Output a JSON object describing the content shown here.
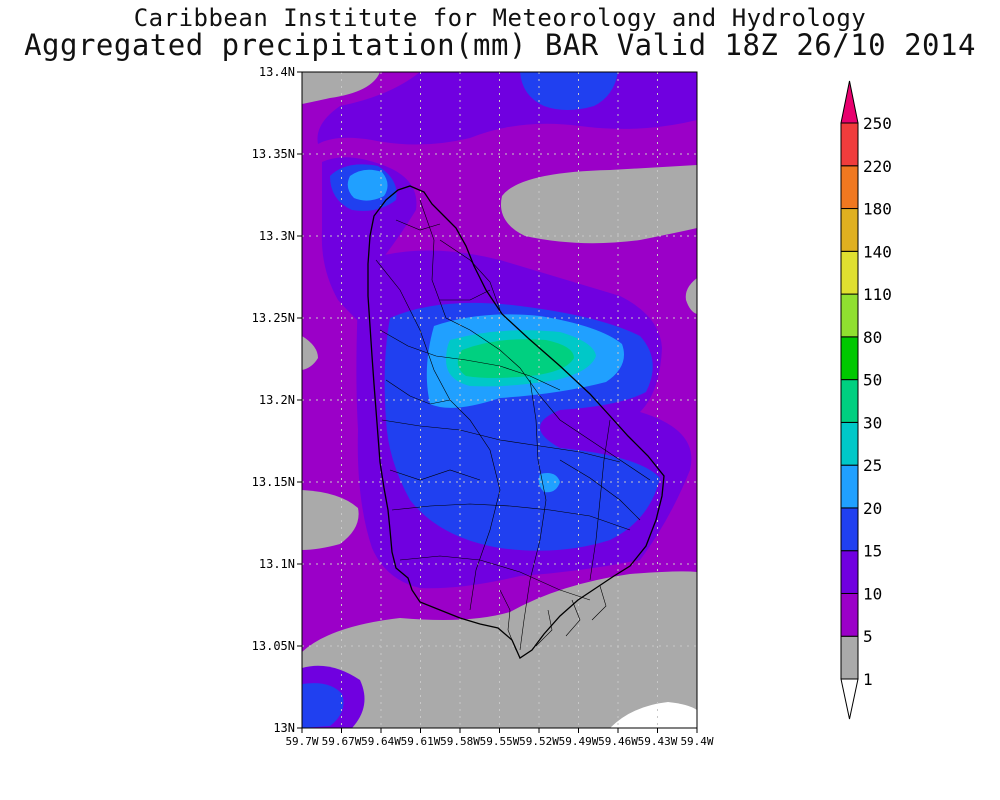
{
  "title": "Caribbean Institute for Meteorology and Hydrology",
  "subtitle": "Aggregated precipitation(mm) BAR Valid 18Z 26/10 2014",
  "map": {
    "lat_ticks": [
      "13.4N",
      "13.35N",
      "13.3N",
      "13.25N",
      "13.2N",
      "13.15N",
      "13.1N",
      "13.05N",
      "13N"
    ],
    "lon_ticks": [
      "59.7W",
      "59.67W",
      "59.64W",
      "59.61W",
      "59.58W",
      "59.55W",
      "59.52W",
      "59.49W",
      "59.46W",
      "59.43W",
      "59.4W"
    ]
  },
  "legend": {
    "levels": [
      "1",
      "5",
      "10",
      "15",
      "20",
      "25",
      "30",
      "50",
      "80",
      "110",
      "140",
      "180",
      "220",
      "250"
    ],
    "colors": [
      "#ffffff",
      "#aaaaaa",
      "#9b00c8",
      "#7000e0",
      "#2040f0",
      "#20a0ff",
      "#00c8c8",
      "#00d080",
      "#00c800",
      "#90e030",
      "#e0e030",
      "#e0b020",
      "#f07820",
      "#f03c3c",
      "#e8006e"
    ]
  },
  "colors": {
    "gray": "#aaaaaa",
    "magenta": "#9b00c8",
    "purple": "#7000e0",
    "blue": "#2040f0",
    "lightblue": "#20a0ff",
    "cyan": "#00c8c8",
    "green": "#00d080",
    "white": "#ffffff"
  }
}
